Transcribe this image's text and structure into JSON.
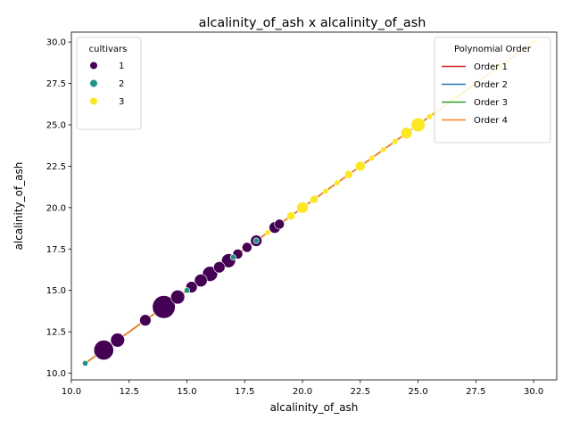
{
  "chart_data": {
    "type": "scatter",
    "title": "alcalinity_of_ash x alcalinity_of_ash",
    "xlabel": "alcalinity_of_ash",
    "ylabel": "alcalinity_of_ash",
    "xlim": [
      10.0,
      31.0
    ],
    "ylim": [
      9.6,
      30.6
    ],
    "xticks": [
      10.0,
      12.5,
      15.0,
      17.5,
      20.0,
      22.5,
      25.0,
      27.5,
      30.0
    ],
    "yticks": [
      10.0,
      12.5,
      15.0,
      17.5,
      20.0,
      22.5,
      25.0,
      27.5,
      30.0
    ],
    "xtick_labels": [
      "10.0",
      "12.5",
      "15.0",
      "17.5",
      "20.0",
      "22.5",
      "25.0",
      "27.5",
      "30.0"
    ],
    "ytick_labels": [
      "10.0",
      "12.5",
      "15.0",
      "17.5",
      "20.0",
      "22.5",
      "25.0",
      "27.5",
      "30.0"
    ],
    "grid": false,
    "size_encoding": "count",
    "hue_legend": {
      "title": "cultivars",
      "placement": "upper-left",
      "entries": [
        {
          "label": "1",
          "color": "#440154"
        },
        {
          "label": "2",
          "color": "#21918c"
        },
        {
          "label": "3",
          "color": "#fde725"
        }
      ]
    },
    "fit_legend": {
      "title": "Polynomial Order",
      "placement": "upper-right",
      "entries": [
        {
          "label": "Order 1",
          "color": "#d62728"
        },
        {
          "label": "Order 2",
          "color": "#1f77b4"
        },
        {
          "label": "Order 3",
          "color": "#2ca02c"
        },
        {
          "label": "Order 4",
          "color": "#ff7f0e"
        }
      ]
    },
    "fit_range": [
      10.6,
      30.0
    ],
    "points": [
      {
        "x": 10.6,
        "cultivar": 2,
        "count": 1
      },
      {
        "x": 11.4,
        "cultivar": 1,
        "count": 12
      },
      {
        "x": 12.0,
        "cultivar": 1,
        "count": 6
      },
      {
        "x": 13.2,
        "cultivar": 1,
        "count": 4
      },
      {
        "x": 14.0,
        "cultivar": 1,
        "count": 16
      },
      {
        "x": 14.6,
        "cultivar": 1,
        "count": 6
      },
      {
        "x": 15.0,
        "cultivar": 2,
        "count": 1
      },
      {
        "x": 15.2,
        "cultivar": 1,
        "count": 4
      },
      {
        "x": 15.6,
        "cultivar": 1,
        "count": 5
      },
      {
        "x": 16.0,
        "cultivar": 1,
        "count": 7
      },
      {
        "x": 16.4,
        "cultivar": 1,
        "count": 4
      },
      {
        "x": 16.8,
        "cultivar": 1,
        "count": 6
      },
      {
        "x": 17.0,
        "cultivar": 2,
        "count": 1
      },
      {
        "x": 17.2,
        "cultivar": 1,
        "count": 3
      },
      {
        "x": 17.6,
        "cultivar": 1,
        "count": 3
      },
      {
        "x": 18.0,
        "cultivar": 1,
        "count": 4
      },
      {
        "x": 18.0,
        "cultivar": 2,
        "count": 1
      },
      {
        "x": 18.5,
        "cultivar": 3,
        "count": 1
      },
      {
        "x": 18.8,
        "cultivar": 1,
        "count": 4
      },
      {
        "x": 19.0,
        "cultivar": 1,
        "count": 3
      },
      {
        "x": 19.5,
        "cultivar": 3,
        "count": 2
      },
      {
        "x": 20.0,
        "cultivar": 1,
        "count": 4
      },
      {
        "x": 20.0,
        "cultivar": 3,
        "count": 4
      },
      {
        "x": 20.5,
        "cultivar": 3,
        "count": 2
      },
      {
        "x": 21.0,
        "cultivar": 3,
        "count": 1
      },
      {
        "x": 21.5,
        "cultivar": 3,
        "count": 1
      },
      {
        "x": 22.0,
        "cultivar": 3,
        "count": 2
      },
      {
        "x": 22.5,
        "cultivar": 3,
        "count": 3
      },
      {
        "x": 23.0,
        "cultivar": 3,
        "count": 1
      },
      {
        "x": 23.5,
        "cultivar": 3,
        "count": 1
      },
      {
        "x": 24.0,
        "cultivar": 3,
        "count": 1
      },
      {
        "x": 24.5,
        "cultivar": 3,
        "count": 4
      },
      {
        "x": 25.0,
        "cultivar": 3,
        "count": 6
      },
      {
        "x": 25.5,
        "cultivar": 3,
        "count": 1
      },
      {
        "x": 26.5,
        "cultivar": 3,
        "count": 1
      },
      {
        "x": 28.5,
        "cultivar": 3,
        "count": 2
      },
      {
        "x": 30.0,
        "cultivar": 3,
        "count": 1
      }
    ]
  }
}
